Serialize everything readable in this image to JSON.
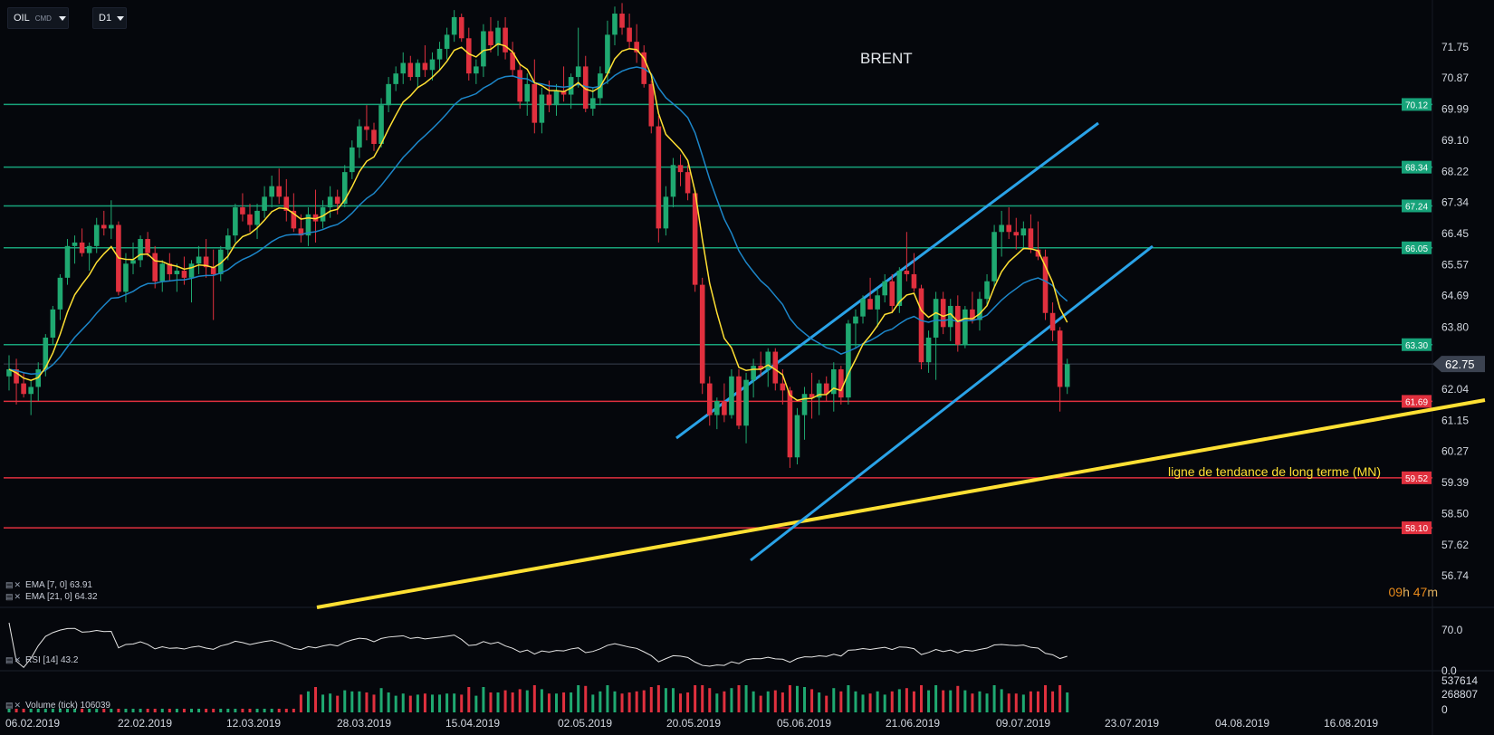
{
  "toolbar": {
    "symbol": "OIL",
    "symbol_type": "CMD",
    "timeframe": "D1"
  },
  "timer": {
    "hours": "09",
    "h_unit": "h",
    "minutes": "47",
    "m_unit": "m"
  },
  "indicators": {
    "ema7": "EMA [7, 0] 63.91",
    "ema21": "EMA [21, 0] 64.32",
    "rsi": "RSI [14] 43.2",
    "volume": "Volume (tick) 106039"
  },
  "colors": {
    "up": "#1fa971",
    "down": "#e0303e",
    "ema7": "#ffe033",
    "ema21": "#1c86c9",
    "channel": "#2aa3e8",
    "trend": "#ffe033",
    "support_line": "#e0303e",
    "resistance_line": "#17a37a"
  },
  "chart_data": {
    "type": "candlestick",
    "title": "BRENT",
    "annotation": "ligne de tendance de long terme (MN)",
    "price_axis_ticks": [
      "71.75",
      "70.87",
      "69.99",
      "69.10",
      "68.22",
      "67.34",
      "66.45",
      "65.57",
      "64.69",
      "63.80",
      "62.04",
      "61.15",
      "60.27",
      "59.39",
      "58.50",
      "57.62",
      "56.74"
    ],
    "date_ticks": [
      "06.02.2019",
      "22.02.2019",
      "12.03.2019",
      "28.03.2019",
      "15.04.2019",
      "02.05.2019",
      "20.05.2019",
      "05.06.2019",
      "21.06.2019",
      "09.07.2019",
      "23.07.2019",
      "04.08.2019",
      "16.08.2019"
    ],
    "current_price": "62.75",
    "levels": [
      {
        "value": "70.12",
        "kind": "resistance"
      },
      {
        "value": "68.34",
        "kind": "resistance"
      },
      {
        "value": "67.24",
        "kind": "resistance"
      },
      {
        "value": "66.05",
        "kind": "resistance"
      },
      {
        "value": "63.30",
        "kind": "resistance"
      },
      {
        "value": "61.69",
        "kind": "support"
      },
      {
        "value": "59.52",
        "kind": "support"
      },
      {
        "value": "58.10",
        "kind": "support"
      }
    ],
    "rsi_axis": [
      "70.0",
      "0.0"
    ],
    "volume_axis": [
      "537614",
      "268807",
      "0"
    ],
    "candles": [
      [
        62.4,
        63.0,
        62.0,
        62.6
      ],
      [
        62.6,
        62.9,
        61.6,
        62.2
      ],
      [
        62.2,
        62.5,
        61.8,
        61.9
      ],
      [
        61.9,
        62.3,
        61.3,
        62.1
      ],
      [
        62.1,
        62.8,
        61.7,
        62.6
      ],
      [
        62.6,
        63.6,
        62.4,
        63.5
      ],
      [
        63.5,
        64.4,
        63.3,
        64.3
      ],
      [
        64.3,
        65.3,
        64.0,
        65.2
      ],
      [
        65.2,
        66.3,
        65.0,
        66.1
      ],
      [
        66.1,
        66.4,
        65.6,
        66.2
      ],
      [
        66.2,
        66.6,
        65.8,
        65.9
      ],
      [
        65.9,
        66.2,
        65.4,
        66.1
      ],
      [
        66.1,
        66.9,
        65.9,
        66.7
      ],
      [
        66.7,
        67.1,
        66.4,
        66.6
      ],
      [
        66.6,
        67.4,
        66.3,
        66.7
      ],
      [
        66.7,
        66.8,
        64.7,
        64.8
      ],
      [
        64.8,
        65.9,
        64.5,
        65.6
      ],
      [
        65.6,
        66.2,
        65.3,
        65.7
      ],
      [
        65.7,
        66.4,
        65.5,
        66.3
      ],
      [
        66.3,
        66.5,
        65.8,
        65.9
      ],
      [
        65.9,
        66.1,
        64.9,
        65.1
      ],
      [
        65.1,
        65.7,
        64.8,
        65.6
      ],
      [
        65.6,
        65.9,
        65.1,
        65.3
      ],
      [
        65.3,
        65.6,
        64.8,
        65.4
      ],
      [
        65.4,
        65.8,
        65.0,
        65.2
      ],
      [
        65.2,
        65.7,
        64.5,
        65.6
      ],
      [
        65.6,
        66.1,
        65.3,
        65.8
      ],
      [
        65.8,
        66.3,
        65.2,
        65.5
      ],
      [
        65.5,
        66.0,
        64.0,
        65.3
      ],
      [
        65.3,
        66.1,
        65.1,
        66.0
      ],
      [
        66.0,
        66.6,
        65.7,
        66.4
      ],
      [
        66.4,
        67.3,
        66.2,
        67.2
      ],
      [
        67.2,
        67.6,
        66.8,
        67.0
      ],
      [
        67.0,
        67.3,
        66.5,
        66.7
      ],
      [
        66.7,
        67.3,
        66.3,
        67.1
      ],
      [
        67.1,
        67.8,
        66.9,
        67.5
      ],
      [
        67.5,
        68.1,
        67.2,
        67.8
      ],
      [
        67.8,
        68.3,
        67.3,
        67.5
      ],
      [
        67.5,
        68.0,
        66.8,
        67.1
      ],
      [
        67.1,
        67.6,
        66.5,
        66.6
      ],
      [
        66.6,
        67.0,
        66.2,
        66.4
      ],
      [
        66.4,
        67.2,
        66.1,
        67.0
      ],
      [
        67.0,
        67.7,
        66.2,
        66.8
      ],
      [
        66.8,
        67.4,
        66.6,
        67.2
      ],
      [
        67.2,
        67.8,
        66.9,
        67.5
      ],
      [
        67.5,
        67.7,
        67.0,
        67.3
      ],
      [
        67.3,
        68.4,
        67.2,
        68.2
      ],
      [
        68.2,
        69.1,
        68.0,
        68.9
      ],
      [
        68.9,
        69.7,
        68.6,
        69.5
      ],
      [
        69.5,
        70.1,
        69.1,
        69.4
      ],
      [
        69.4,
        69.6,
        68.8,
        69.0
      ],
      [
        69.0,
        70.3,
        68.9,
        70.1
      ],
      [
        70.1,
        70.9,
        69.9,
        70.7
      ],
      [
        70.7,
        71.2,
        70.5,
        71.0
      ],
      [
        71.0,
        71.6,
        70.7,
        71.3
      ],
      [
        71.3,
        71.5,
        70.8,
        70.9
      ],
      [
        70.9,
        71.4,
        70.6,
        71.3
      ],
      [
        71.3,
        71.8,
        70.9,
        71.1
      ],
      [
        71.1,
        71.6,
        70.8,
        71.4
      ],
      [
        71.4,
        71.9,
        71.1,
        71.7
      ],
      [
        71.7,
        72.3,
        71.4,
        72.1
      ],
      [
        72.1,
        72.8,
        71.9,
        72.6
      ],
      [
        72.6,
        72.7,
        71.9,
        72.0
      ],
      [
        72.0,
        72.3,
        70.8,
        71.0
      ],
      [
        71.0,
        71.4,
        70.7,
        71.2
      ],
      [
        71.2,
        72.4,
        70.9,
        72.2
      ],
      [
        72.2,
        72.6,
        71.6,
        71.8
      ],
      [
        71.8,
        72.5,
        71.5,
        72.3
      ],
      [
        72.3,
        72.6,
        71.4,
        71.6
      ],
      [
        71.6,
        71.9,
        70.9,
        71.1
      ],
      [
        71.1,
        71.3,
        70.0,
        70.2
      ],
      [
        70.2,
        71.0,
        69.8,
        70.7
      ],
      [
        70.7,
        71.4,
        69.3,
        69.6
      ],
      [
        69.6,
        70.6,
        69.3,
        70.4
      ],
      [
        70.4,
        70.8,
        69.9,
        70.1
      ],
      [
        70.1,
        70.7,
        69.8,
        70.5
      ],
      [
        70.5,
        71.2,
        70.2,
        70.4
      ],
      [
        70.4,
        71.0,
        70.0,
        70.9
      ],
      [
        70.9,
        72.3,
        70.6,
        71.2
      ],
      [
        71.2,
        71.5,
        69.9,
        70.0
      ],
      [
        70.0,
        70.6,
        69.8,
        70.3
      ],
      [
        70.3,
        71.2,
        70.1,
        71.0
      ],
      [
        71.0,
        72.5,
        70.7,
        72.1
      ],
      [
        72.1,
        72.9,
        71.8,
        72.7
      ],
      [
        72.7,
        73.0,
        72.1,
        72.3
      ],
      [
        72.3,
        72.7,
        71.7,
        71.9
      ],
      [
        71.9,
        72.4,
        71.3,
        71.6
      ],
      [
        71.6,
        71.8,
        70.6,
        70.7
      ],
      [
        70.7,
        70.8,
        69.3,
        69.5
      ],
      [
        69.5,
        69.8,
        66.2,
        66.6
      ],
      [
        66.6,
        67.8,
        66.4,
        67.5
      ],
      [
        67.5,
        68.6,
        67.2,
        68.4
      ],
      [
        68.4,
        68.7,
        67.8,
        68.2
      ],
      [
        68.2,
        68.4,
        67.4,
        67.6
      ],
      [
        67.6,
        67.7,
        64.8,
        65.0
      ],
      [
        65.0,
        65.2,
        61.9,
        62.2
      ],
      [
        62.2,
        62.4,
        61.0,
        61.3
      ],
      [
        61.3,
        61.8,
        60.9,
        61.7
      ],
      [
        61.7,
        62.2,
        61.1,
        61.3
      ],
      [
        61.3,
        62.6,
        61.2,
        62.4
      ],
      [
        62.4,
        62.6,
        60.9,
        61.0
      ],
      [
        61.0,
        62.5,
        60.5,
        62.3
      ],
      [
        62.3,
        62.9,
        61.8,
        62.7
      ],
      [
        62.7,
        63.1,
        62.4,
        62.6
      ],
      [
        62.6,
        63.2,
        62.1,
        63.1
      ],
      [
        63.1,
        63.2,
        62.0,
        62.2
      ],
      [
        62.2,
        62.6,
        61.6,
        62.0
      ],
      [
        62.0,
        62.1,
        59.8,
        60.1
      ],
      [
        60.1,
        61.5,
        59.9,
        61.3
      ],
      [
        61.3,
        62.1,
        60.6,
        61.9
      ],
      [
        61.9,
        62.5,
        61.2,
        61.8
      ],
      [
        61.8,
        62.3,
        61.3,
        62.2
      ],
      [
        62.2,
        62.4,
        61.7,
        61.9
      ],
      [
        61.9,
        62.8,
        61.4,
        62.6
      ],
      [
        62.6,
        62.7,
        61.6,
        61.8
      ],
      [
        61.8,
        64.0,
        61.6,
        63.9
      ],
      [
        63.9,
        64.3,
        63.2,
        64.1
      ],
      [
        64.1,
        64.7,
        63.9,
        64.6
      ],
      [
        64.6,
        65.2,
        64.3,
        64.3
      ],
      [
        64.3,
        64.9,
        63.8,
        64.7
      ],
      [
        64.7,
        65.3,
        64.5,
        65.1
      ],
      [
        65.1,
        65.3,
        64.2,
        64.4
      ],
      [
        64.4,
        65.5,
        64.2,
        65.4
      ],
      [
        65.4,
        66.5,
        65.1,
        65.3
      ],
      [
        65.3,
        65.9,
        64.8,
        64.9
      ],
      [
        64.9,
        65.0,
        62.6,
        62.8
      ],
      [
        62.8,
        63.7,
        62.5,
        63.5
      ],
      [
        63.5,
        64.8,
        62.3,
        64.6
      ],
      [
        64.6,
        64.8,
        63.6,
        63.8
      ],
      [
        63.8,
        64.6,
        63.4,
        64.4
      ],
      [
        64.4,
        64.7,
        63.1,
        63.3
      ],
      [
        63.3,
        64.4,
        63.2,
        64.3
      ],
      [
        64.3,
        64.8,
        63.9,
        64.0
      ],
      [
        64.0,
        64.8,
        63.7,
        64.6
      ],
      [
        64.6,
        65.3,
        64.4,
        65.1
      ],
      [
        65.1,
        66.7,
        64.9,
        66.5
      ],
      [
        66.5,
        67.1,
        65.8,
        66.7
      ],
      [
        66.7,
        67.2,
        66.3,
        66.5
      ],
      [
        66.5,
        66.9,
        66.0,
        66.4
      ],
      [
        66.4,
        66.8,
        66.0,
        66.6
      ],
      [
        66.6,
        67.0,
        65.9,
        66.0
      ],
      [
        66.0,
        66.8,
        65.7,
        65.8
      ],
      [
        65.8,
        66.0,
        64.0,
        64.2
      ],
      [
        64.2,
        64.5,
        63.4,
        63.7
      ],
      [
        63.7,
        63.8,
        61.4,
        62.1
      ],
      [
        62.1,
        62.9,
        61.9,
        62.75
      ]
    ]
  }
}
